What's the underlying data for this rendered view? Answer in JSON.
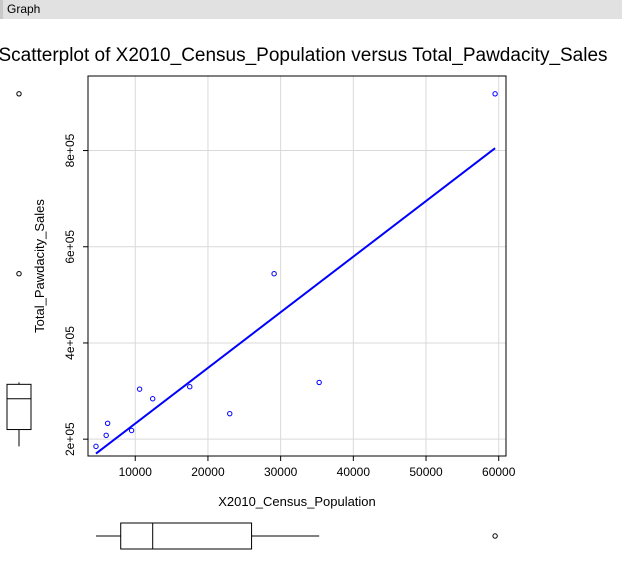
{
  "window": {
    "title": "Graph"
  },
  "chart_data": {
    "type": "scatter",
    "title": "Scatterplot of X2010_Census_Population versus Total_Pawdacity_Sales",
    "xlabel": "X2010_Census_Population",
    "ylabel": "Total_Pawdacity_Sales",
    "xlim": [
      3500,
      61000
    ],
    "ylim": [
      165000,
      955000
    ],
    "xticks": [
      10000,
      20000,
      30000,
      40000,
      50000,
      60000
    ],
    "xtick_labels": [
      "10000",
      "20000",
      "30000",
      "40000",
      "50000",
      "60000"
    ],
    "yticks": [
      200000,
      400000,
      600000,
      800000
    ],
    "ytick_labels": [
      "2e+05",
      "4e+05",
      "6e+05",
      "8e+05"
    ],
    "grid": true,
    "point_color": "#0000ff",
    "line_color": "#0000ff",
    "points": [
      {
        "x": 4600,
        "y": 185000
      },
      {
        "x": 6000,
        "y": 208000
      },
      {
        "x": 6200,
        "y": 233000
      },
      {
        "x": 9500,
        "y": 218000
      },
      {
        "x": 10600,
        "y": 304000
      },
      {
        "x": 12400,
        "y": 284000
      },
      {
        "x": 17500,
        "y": 309000
      },
      {
        "x": 23000,
        "y": 253000
      },
      {
        "x": 29100,
        "y": 544000
      },
      {
        "x": 35300,
        "y": 318000
      },
      {
        "x": 59500,
        "y": 918000
      }
    ],
    "fit_line": {
      "x0": 4600,
      "y0": 170000,
      "x1": 59500,
      "y1": 805000
    },
    "y_boxplot": {
      "whisker_low": 185000,
      "q1": 220000,
      "median": 284000,
      "q3": 314000,
      "whisker_high": 318000,
      "outliers": [
        544000,
        918000
      ]
    },
    "x_boxplot": {
      "whisker_low": 4600,
      "q1": 8000,
      "median": 12400,
      "q3": 26000,
      "whisker_high": 35300,
      "outliers": [
        59500
      ]
    }
  }
}
